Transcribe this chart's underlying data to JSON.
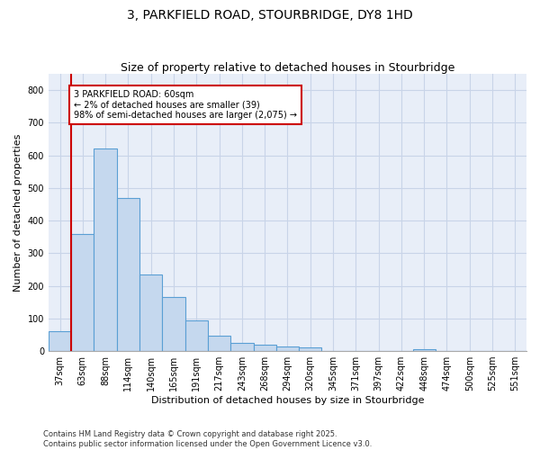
{
  "title": "3, PARKFIELD ROAD, STOURBRIDGE, DY8 1HD",
  "subtitle": "Size of property relative to detached houses in Stourbridge",
  "xlabel": "Distribution of detached houses by size in Stourbridge",
  "ylabel": "Number of detached properties",
  "categories": [
    "37sqm",
    "63sqm",
    "88sqm",
    "114sqm",
    "140sqm",
    "165sqm",
    "191sqm",
    "217sqm",
    "243sqm",
    "268sqm",
    "294sqm",
    "320sqm",
    "345sqm",
    "371sqm",
    "397sqm",
    "422sqm",
    "448sqm",
    "474sqm",
    "500sqm",
    "525sqm",
    "551sqm"
  ],
  "values": [
    60,
    360,
    620,
    470,
    235,
    165,
    95,
    47,
    25,
    20,
    15,
    10,
    0,
    0,
    0,
    0,
    7,
    0,
    0,
    0,
    0
  ],
  "bar_color": "#c5d8ee",
  "bar_edge_color": "#5a9fd4",
  "grid_color": "#c8d4e8",
  "bg_color": "#e8eef8",
  "annotation_box_color": "#cc0000",
  "annotation_text": "3 PARKFIELD ROAD: 60sqm\n← 2% of detached houses are smaller (39)\n98% of semi-detached houses are larger (2,075) →",
  "vline_color": "#cc0000",
  "ylim": [
    0,
    850
  ],
  "yticks": [
    0,
    100,
    200,
    300,
    400,
    500,
    600,
    700,
    800
  ],
  "footer": "Contains HM Land Registry data © Crown copyright and database right 2025.\nContains public sector information licensed under the Open Government Licence v3.0.",
  "title_fontsize": 10,
  "subtitle_fontsize": 9,
  "axis_label_fontsize": 8,
  "tick_fontsize": 7,
  "annotation_fontsize": 7
}
